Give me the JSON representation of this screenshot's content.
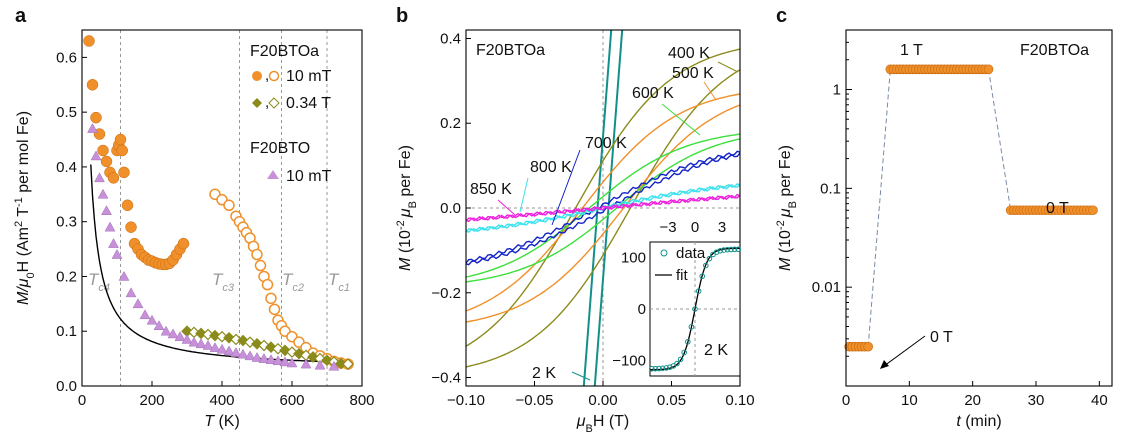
{
  "colors": {
    "orange": "#f0902a",
    "olive": "#8b8b1c",
    "pink": "#c890d8",
    "teal": "#11908a",
    "green": "#3be03b",
    "blue": "#1222c8",
    "cyan": "#3ee2ee",
    "magenta": "#ee22dd",
    "gray": "#999999"
  },
  "chart_data": [
    {
      "panel": "a",
      "type": "scatter",
      "ylabel_parts": [
        "M/",
        "μ",
        "0",
        "H (Am",
        "2",
        " T",
        "-1",
        " per mol Fe)"
      ],
      "xlabel_parts": [
        "T",
        " (K)"
      ],
      "xlim": [
        0,
        800
      ],
      "ylim": [
        0,
        0.65
      ],
      "xticks": [
        "0",
        "200",
        "400",
        "600",
        "800"
      ],
      "yticks": [
        "0.0",
        "0.1",
        "0.2",
        "0.3",
        "0.4",
        "0.5",
        "0.6"
      ],
      "legend": {
        "title1": "F20BTOa",
        "s1": "10 mT",
        "s2": "0.34 T",
        "title2": "F20BTO",
        "s3": "10 mT"
      },
      "tc_labels": [
        {
          "base": "T",
          "sub": "c4",
          "at": 110
        },
        {
          "base": "T",
          "sub": "c3",
          "at": 450
        },
        {
          "base": "T",
          "sub": "c2",
          "at": 570
        },
        {
          "base": "T",
          "sub": "c1",
          "at": 700
        }
      ],
      "series": [
        {
          "name": "10 mT",
          "marker": "filled-circle",
          "x": [
            20,
            30,
            40,
            50,
            60,
            70,
            80,
            90,
            100,
            105,
            110,
            115,
            120,
            130,
            140,
            150,
            160,
            170,
            180,
            190,
            200,
            210,
            220,
            230,
            240,
            250,
            260,
            270,
            280,
            290
          ],
          "y": [
            0.63,
            0.55,
            0.49,
            0.46,
            0.43,
            0.41,
            0.39,
            0.38,
            0.43,
            0.44,
            0.45,
            0.43,
            0.39,
            0.33,
            0.29,
            0.26,
            0.25,
            0.24,
            0.235,
            0.23,
            0.228,
            0.225,
            0.223,
            0.222,
            0.222,
            0.224,
            0.23,
            0.24,
            0.25,
            0.26
          ]
        },
        {
          "name": "10 mT",
          "marker": "open-circle",
          "x": [
            380,
            400,
            420,
            440,
            450,
            460,
            470,
            480,
            490,
            500,
            510,
            520,
            530,
            540,
            550,
            560,
            570,
            580,
            600,
            620,
            640,
            660,
            680,
            700,
            720,
            740,
            760
          ],
          "y": [
            0.35,
            0.34,
            0.33,
            0.31,
            0.3,
            0.29,
            0.28,
            0.27,
            0.255,
            0.24,
            0.22,
            0.2,
            0.185,
            0.16,
            0.14,
            0.12,
            0.11,
            0.1,
            0.09,
            0.08,
            0.07,
            0.06,
            0.055,
            0.05,
            0.045,
            0.042,
            0.04
          ]
        },
        {
          "name": "0.34 T",
          "marker": "filled-diamond",
          "x": [
            300,
            320,
            340,
            360,
            380,
            400,
            420,
            440,
            460,
            480,
            500,
            520,
            540,
            560,
            580,
            600,
            620,
            640,
            660,
            680,
            700,
            720,
            740,
            760
          ],
          "y": [
            0.1,
            0.098,
            0.096,
            0.094,
            0.092,
            0.09,
            0.088,
            0.085,
            0.083,
            0.08,
            0.077,
            0.074,
            0.071,
            0.068,
            0.065,
            0.062,
            0.059,
            0.056,
            0.053,
            0.05,
            0.047,
            0.044,
            0.041,
            0.04
          ]
        },
        {
          "name": "10 mT",
          "marker": "triangle",
          "x": [
            30,
            40,
            50,
            60,
            70,
            80,
            90,
            100,
            120,
            140,
            160,
            180,
            200,
            220,
            240,
            260,
            280,
            300,
            320,
            340,
            360,
            380,
            400,
            420,
            440,
            460,
            480,
            500,
            520,
            540,
            560,
            580,
            600,
            640,
            680,
            720
          ],
          "y": [
            0.47,
            0.42,
            0.38,
            0.35,
            0.32,
            0.29,
            0.26,
            0.24,
            0.2,
            0.17,
            0.15,
            0.13,
            0.12,
            0.11,
            0.1,
            0.095,
            0.09,
            0.085,
            0.08,
            0.077,
            0.074,
            0.07,
            0.067,
            0.064,
            0.061,
            0.058,
            0.055,
            0.052,
            0.05,
            0.048,
            0.046,
            0.044,
            0.042,
            0.04,
            0.038,
            0.036
          ]
        }
      ]
    },
    {
      "panel": "b",
      "type": "line",
      "ylabel_parts": [
        "M",
        " (10",
        "-2 ",
        "μ",
        "B",
        " per Fe)"
      ],
      "xlabel_parts": [
        "μ",
        "B",
        "H (T)"
      ],
      "xlim": [
        -0.1,
        0.1
      ],
      "ylim": [
        -0.42,
        0.42
      ],
      "xticks": [
        "-0.10",
        "-0.05",
        "0.00",
        "0.05",
        "0.10"
      ],
      "yticks": [
        "-0.4",
        "-0.2",
        "0.0",
        "0.2",
        "0.4"
      ],
      "sample": "F20BTOa",
      "series": [
        {
          "name": "2 K",
          "color": "teal",
          "slope": 42,
          "offset": 0.004
        },
        {
          "name": "400 K",
          "color": "olive",
          "sat": 0.8,
          "scale": 0.07,
          "hyst": 0.02
        },
        {
          "name": "500 K",
          "color": "orange",
          "sat": 0.58,
          "scale": 0.07,
          "hyst": 0.015
        },
        {
          "name": "600 K",
          "color": "green",
          "sat": 0.38,
          "scale": 0.07,
          "hyst": 0.01
        },
        {
          "name": "700 K",
          "color": "blue",
          "sat": 0.32,
          "scale": 0.09,
          "hyst": 0.004
        },
        {
          "name": "800 K",
          "color": "cyan",
          "sat": 0.14,
          "scale": 0.1,
          "hyst": 0.002
        },
        {
          "name": "850 K",
          "color": "magenta",
          "sat": 0.12,
          "scale": 0.2,
          "hyst": 0.002
        }
      ],
      "labels": [
        "400 K",
        "500 K",
        "600 K",
        "700 K",
        "800 K",
        "850 K",
        "2 K"
      ],
      "inset": {
        "xlim": [
          -5,
          5
        ],
        "ylim": [
          -130,
          130
        ],
        "xticks": [
          "-3",
          "0",
          "3"
        ],
        "yticks": [
          "100",
          "0",
          "-100"
        ],
        "legend": {
          "data": "data",
          "fit": "fit"
        },
        "label": "2 K"
      }
    },
    {
      "panel": "c",
      "type": "scatter",
      "ylabel_parts": [
        "M",
        " (10",
        "-2 ",
        "μ",
        "B",
        " per Fe)"
      ],
      "xlabel_parts": [
        "t",
        " (min)"
      ],
      "xlim": [
        0,
        42
      ],
      "ylim_log": [
        0.001,
        4
      ],
      "xticks": [
        "0",
        "10",
        "20",
        "30",
        "40"
      ],
      "yticks": [
        "0.01",
        "0.1",
        "1"
      ],
      "sample": "F20BTOa",
      "annotations": [
        "1 T",
        "0 T",
        "0 T"
      ],
      "series": [
        {
          "segment": "0 T",
          "t_start": 0.5,
          "t_end": 3.5,
          "value": 0.0025
        },
        {
          "segment": "1 T",
          "t_start": 7,
          "t_end": 22.5,
          "value": 1.6
        },
        {
          "segment": "0 T",
          "t_start": 26,
          "t_end": 39,
          "value": 0.06
        }
      ]
    }
  ],
  "panel_letters": [
    "a",
    "b",
    "c"
  ]
}
